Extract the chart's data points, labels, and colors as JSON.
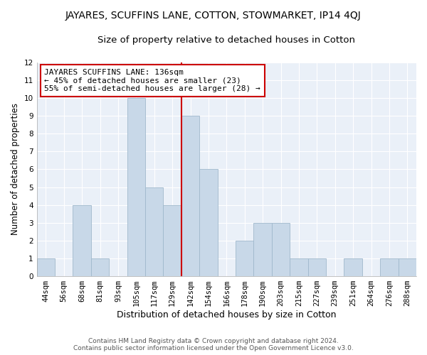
{
  "title": "JAYARES, SCUFFINS LANE, COTTON, STOWMARKET, IP14 4QJ",
  "subtitle": "Size of property relative to detached houses in Cotton",
  "xlabel": "Distribution of detached houses by size in Cotton",
  "ylabel": "Number of detached properties",
  "bin_labels": [
    "44sqm",
    "56sqm",
    "68sqm",
    "81sqm",
    "93sqm",
    "105sqm",
    "117sqm",
    "129sqm",
    "142sqm",
    "154sqm",
    "166sqm",
    "178sqm",
    "190sqm",
    "203sqm",
    "215sqm",
    "227sqm",
    "239sqm",
    "251sqm",
    "264sqm",
    "276sqm",
    "288sqm"
  ],
  "bar_heights": [
    1,
    0,
    4,
    1,
    0,
    10,
    5,
    4,
    9,
    6,
    0,
    2,
    3,
    3,
    1,
    1,
    0,
    1,
    0,
    1,
    1
  ],
  "bar_color": "#c8d8e8",
  "bar_edge_color": "#a0b8cc",
  "bg_color": "#eaf0f8",
  "grid_color": "#ffffff",
  "vline_color": "#cc0000",
  "annotation_title": "JAYARES SCUFFINS LANE: 136sqm",
  "annotation_line1": "← 45% of detached houses are smaller (23)",
  "annotation_line2": "55% of semi-detached houses are larger (28) →",
  "annotation_box_color": "#ffffff",
  "annotation_box_edge": "#cc0000",
  "ylim": [
    0,
    12
  ],
  "yticks": [
    0,
    1,
    2,
    3,
    4,
    5,
    6,
    7,
    8,
    9,
    10,
    11,
    12
  ],
  "footer_line1": "Contains HM Land Registry data © Crown copyright and database right 2024.",
  "footer_line2": "Contains public sector information licensed under the Open Government Licence v3.0.",
  "title_fontsize": 10,
  "subtitle_fontsize": 9.5,
  "xlabel_fontsize": 9,
  "ylabel_fontsize": 8.5,
  "tick_fontsize": 7.5,
  "footer_fontsize": 6.5,
  "annotation_fontsize": 8
}
